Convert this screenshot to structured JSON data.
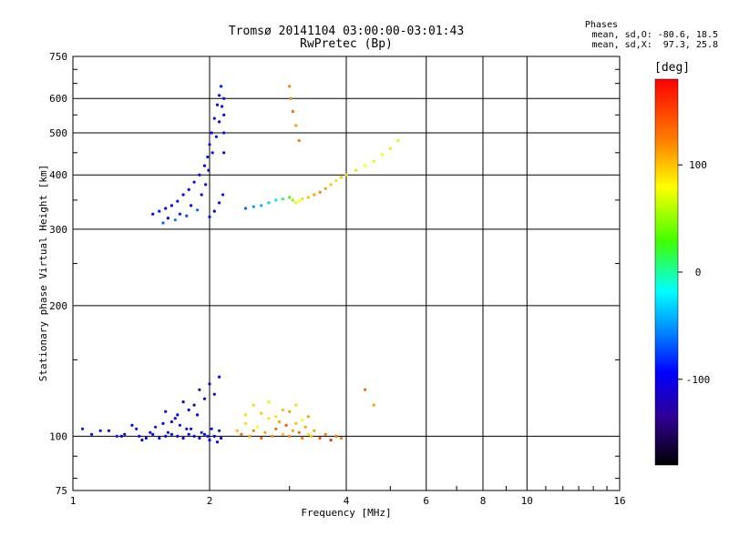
{
  "chart_data": {
    "type": "scatter",
    "title": "Tromsø 20141104 03:00:00-03:01:43",
    "subtitle": "RwPretec (Bp)",
    "xlabel": "Frequency [MHz]",
    "ylabel": "Stationary phase Virtual Height [km]",
    "x_scale": "log",
    "y_scale": "log",
    "xlim": [
      1,
      16
    ],
    "ylim": [
      75,
      750
    ],
    "x_ticks": [
      1,
      2,
      4,
      6,
      8,
      10,
      16
    ],
    "x_tick_labels": [
      "1",
      "2",
      "4",
      "6",
      "8",
      "10",
      "16"
    ],
    "y_ticks": [
      75,
      100,
      200,
      300,
      400,
      500,
      600,
      750
    ],
    "y_tick_labels": [
      "75",
      "100",
      "200",
      "300",
      "400",
      "500",
      "600",
      "750"
    ],
    "grid": true,
    "stats": {
      "heading": "Phases",
      "line_o": "mean, sd,O: -80.6, 18.5",
      "line_x": "mean, sd,X:  97.3, 25.8"
    },
    "colorbar": {
      "unit_label": "[deg]",
      "range": [
        -180,
        180
      ],
      "ticks": [
        100,
        0,
        -100
      ],
      "tick_labels": [
        "100",
        "0",
        "-100"
      ]
    },
    "series": [
      {
        "note": "blue E-region echoes, phase around -100 deg",
        "x": [
          1.05,
          1.1,
          1.2,
          1.3,
          1.35,
          1.4,
          1.45,
          1.5,
          1.52,
          1.55,
          1.6,
          1.62,
          1.65,
          1.7,
          1.72,
          1.75,
          1.8,
          1.82,
          1.85,
          1.9,
          1.92,
          1.95,
          2.0,
          2.02,
          2.05,
          2.08,
          2.1,
          2.12,
          1.58,
          1.68,
          1.78,
          1.88,
          1.98,
          1.48,
          1.42,
          1.38,
          1.28,
          1.15,
          1.25,
          1.85,
          1.9,
          1.95,
          2.0,
          2.05,
          2.1,
          1.8,
          1.75,
          1.7,
          1.65,
          1.6
        ],
        "y": [
          104,
          101,
          103,
          101,
          106,
          100,
          99,
          101,
          105,
          99,
          100,
          102,
          101,
          100,
          106,
          99,
          101,
          104,
          100,
          99,
          102,
          101,
          98,
          104,
          100,
          97,
          103,
          99,
          107,
          110,
          104,
          112,
          100,
          102,
          98,
          104,
          100,
          103,
          100,
          118,
          128,
          122,
          132,
          125,
          137,
          115,
          120,
          112,
          108,
          114
        ],
        "phase": [
          -90,
          -95,
          -100,
          -110,
          -100,
          -95,
          -110,
          -100,
          -90,
          -105,
          -100,
          -95,
          -110,
          -100,
          -90,
          -105,
          -100,
          -95,
          -110,
          -100,
          -90,
          -105,
          -100,
          -95,
          -110,
          -100,
          -90,
          -105,
          -100,
          -95,
          -110,
          -100,
          -90,
          -105,
          -100,
          -95,
          -110,
          -100,
          -90,
          -130,
          -140,
          -110,
          -120,
          -130,
          -100,
          -110,
          -120,
          -100,
          -110,
          -100
        ]
      },
      {
        "note": "orange/yellow E-region echoes, phase around +100..+150 deg",
        "x": [
          2.3,
          2.35,
          2.4,
          2.45,
          2.5,
          2.55,
          2.6,
          2.65,
          2.7,
          2.75,
          2.8,
          2.85,
          2.9,
          2.95,
          3.0,
          3.05,
          3.1,
          3.15,
          3.2,
          3.25,
          3.3,
          3.35,
          3.4,
          3.5,
          3.6,
          3.7,
          3.8,
          3.9,
          2.4,
          2.6,
          2.8,
          3.0,
          3.2,
          2.5,
          2.7,
          2.9,
          3.1,
          3.3,
          4.4,
          4.6
        ],
        "y": [
          103,
          101,
          107,
          100,
          103,
          105,
          99,
          102,
          110,
          100,
          104,
          108,
          101,
          106,
          100,
          103,
          107,
          102,
          99,
          105,
          101,
          100,
          103,
          99,
          101,
          98,
          100,
          99,
          112,
          113,
          111,
          114,
          109,
          118,
          120,
          115,
          118,
          111,
          128,
          118
        ],
        "phase": [
          110,
          140,
          100,
          120,
          130,
          90,
          140,
          120,
          100,
          130,
          140,
          120,
          110,
          150,
          130,
          120,
          110,
          140,
          130,
          120,
          100,
          110,
          120,
          150,
          130,
          160,
          140,
          130,
          100,
          110,
          100,
          120,
          90,
          100,
          80,
          110,
          100,
          120,
          140,
          120
        ]
      },
      {
        "note": "blue F-region trace (left branch), phase around -100 deg",
        "x": [
          1.5,
          1.55,
          1.6,
          1.65,
          1.7,
          1.75,
          1.8,
          1.85,
          1.9,
          1.95,
          1.98,
          2.0,
          2.02,
          2.05,
          2.08,
          2.1,
          2.12,
          2.15,
          2.15,
          2.15,
          2.15,
          1.62,
          1.72,
          1.82,
          1.92,
          1.96,
          1.99,
          2.03,
          2.07,
          2.1,
          2.13,
          2.0,
          2.05,
          2.1,
          2.14,
          1.58,
          1.68,
          1.78,
          1.88
        ],
        "y": [
          325,
          330,
          335,
          340,
          348,
          360,
          370,
          385,
          400,
          420,
          440,
          470,
          500,
          540,
          580,
          610,
          640,
          600,
          550,
          500,
          450,
          318,
          325,
          340,
          360,
          380,
          410,
          450,
          490,
          530,
          575,
          320,
          330,
          345,
          360,
          310,
          315,
          322,
          332
        ],
        "phase": [
          -100,
          -95,
          -110,
          -100,
          -90,
          -105,
          -100,
          -95,
          -110,
          -100,
          -90,
          -105,
          -100,
          -95,
          -110,
          -100,
          -90,
          -105,
          -100,
          -95,
          -110,
          -100,
          -90,
          -105,
          -100,
          -95,
          -110,
          -100,
          -90,
          -105,
          -100,
          -95,
          -110,
          -100,
          -90,
          -60,
          -50,
          -70,
          -60
        ]
      },
      {
        "note": "F-region second trace (middle), phase from cyan to orange",
        "x": [
          2.4,
          2.5,
          2.6,
          2.7,
          2.8,
          2.9,
          3.0,
          3.05,
          3.1,
          3.15,
          3.2,
          3.3,
          3.4,
          3.5,
          3.6,
          3.7,
          3.8,
          3.9,
          4.0,
          4.2,
          4.4,
          4.6,
          4.8,
          5.0,
          5.2,
          3.0,
          3.02,
          3.05,
          3.1,
          3.15
        ],
        "y": [
          335,
          338,
          340,
          345,
          350,
          352,
          355,
          350,
          345,
          348,
          352,
          355,
          360,
          365,
          372,
          380,
          388,
          395,
          400,
          410,
          420,
          430,
          445,
          460,
          480,
          640,
          600,
          560,
          520,
          480
        ],
        "phase": [
          -60,
          -40,
          -30,
          -20,
          -10,
          20,
          40,
          60,
          80,
          90,
          100,
          110,
          120,
          130,
          120,
          110,
          100,
          110,
          100,
          100,
          90,
          80,
          90,
          100,
          80,
          130,
          130,
          140,
          120,
          130
        ]
      }
    ]
  }
}
